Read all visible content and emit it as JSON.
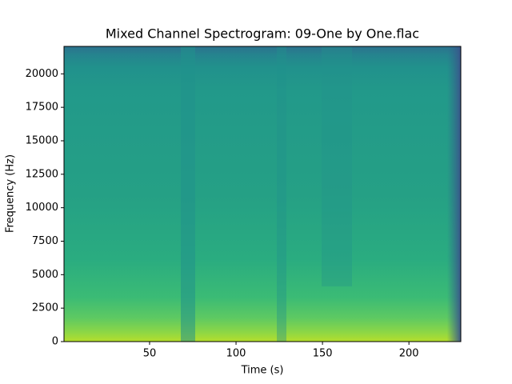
{
  "chart_data": {
    "type": "spectrogram",
    "title": "Mixed Channel Spectrogram: 09-One by One.flac",
    "x_label": "Time (s)",
    "y_label": "Frequency (Hz)",
    "xlim": [
      0.5,
      230
    ],
    "xticks": [
      50,
      100,
      150,
      200
    ],
    "ylim": [
      0,
      22050
    ],
    "yticks": [
      0,
      2500,
      5000,
      7500,
      10000,
      12500,
      15000,
      17500,
      20000
    ],
    "colormap": "viridis"
  }
}
